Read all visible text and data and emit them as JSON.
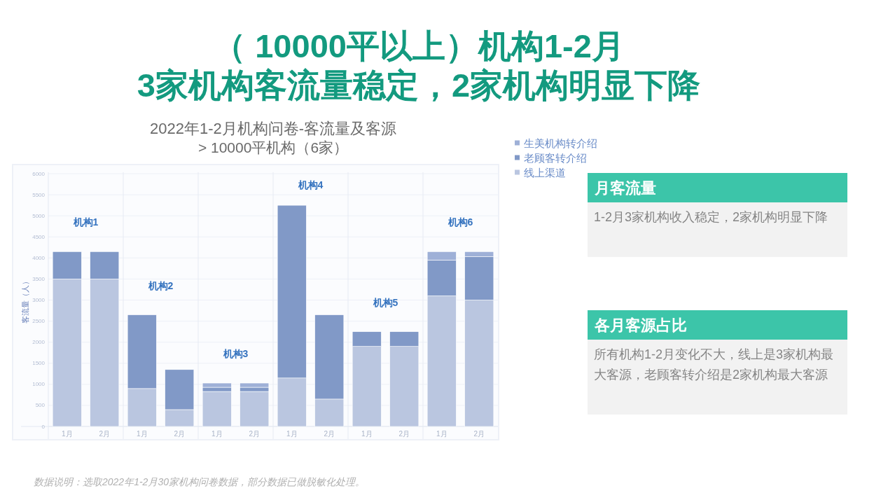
{
  "chart_data": [
    {
      "type": "other",
      "title": "（ 10000平以上）机构1-2月\n3家机构客流量稳定，2家机构明显下降",
      "annotations": [
        "月客流量",
        "1-2月3家机构收入稳定，2家机构明显下降",
        "各月客源占比",
        "所有机构1-2月变化不大，线上是3家机构最大客源，老顾客转介绍是2家机构最大客源",
        "数据说明：选取2022年1-2月30家机构问卷数据，部分数据已做脱敏化处理。"
      ]
    },
    {
      "type": "bar",
      "title": "2022年1-2月机构问卷-客流量及客源",
      "subtitle": "> 10000平机构（6家）",
      "ylabel": "客流量（人）",
      "categories": [
        "1月",
        "2月",
        "1月",
        "2月",
        "1月",
        "2月",
        "1月",
        "2月",
        "1月",
        "2月",
        "1月",
        "2月"
      ],
      "stacked": true,
      "series": [
        {
          "name": "线上渠道",
          "color": "#bac6e0",
          "values": [
            3500,
            3500,
            900,
            400,
            830,
            830,
            1150,
            650,
            1900,
            1900,
            3100,
            3000
          ]
        },
        {
          "name": "老顾客转介绍",
          "color": "#8199c7",
          "values": [
            650,
            650,
            1750,
            950,
            100,
            100,
            4100,
            2000,
            350,
            350,
            850,
            1030
          ]
        },
        {
          "name": "生美机构转介绍",
          "color": "#9eb0d7",
          "values": [
            null,
            null,
            null,
            null,
            100,
            100,
            null,
            null,
            null,
            null,
            200,
            120
          ]
        }
      ],
      "ylim": [
        0,
        6000
      ],
      "yticks": [
        0,
        500,
        1000,
        1500,
        2000,
        2500,
        3000,
        3500,
        4000,
        4500,
        5000,
        5500,
        6000
      ],
      "grid": "y",
      "legend": "top right",
      "annotations": [
        "机构1",
        "机构2",
        "机构3",
        "机构4",
        "机构5",
        "机构6"
      ]
    }
  ]
}
